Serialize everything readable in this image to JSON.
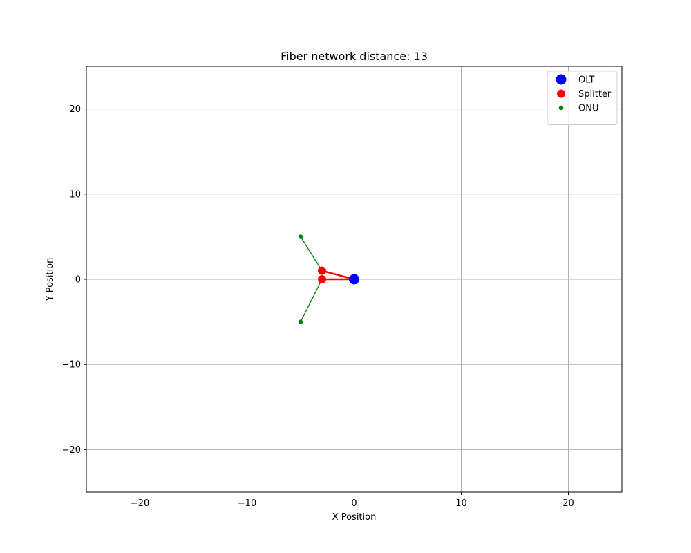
{
  "chart_data": {
    "type": "scatter",
    "title": "Fiber network distance: 13",
    "xlabel": "X Position",
    "ylabel": "Y Position",
    "xlim": [
      -25,
      25
    ],
    "ylim": [
      -25,
      25
    ],
    "xticks": [
      -20,
      -10,
      0,
      10,
      20
    ],
    "yticks": [
      -20,
      -10,
      0,
      10,
      20
    ],
    "xtick_labels": [
      "−20",
      "−10",
      "0",
      "10",
      "20"
    ],
    "ytick_labels": [
      "−20",
      "−10",
      "0",
      "10",
      "20"
    ],
    "grid": true,
    "legend_position": "top-right",
    "series": [
      {
        "name": "OLT",
        "color": "#0000ff",
        "marker": "large-circle",
        "points": [
          [
            0,
            0
          ]
        ]
      },
      {
        "name": "Splitter",
        "color": "#ff0000",
        "marker": "medium-circle",
        "points": [
          [
            -3,
            1
          ],
          [
            -3,
            0
          ]
        ]
      },
      {
        "name": "ONU",
        "color": "#008000",
        "marker": "small-circle",
        "points": [
          [
            -5,
            5
          ],
          [
            -5,
            -5
          ]
        ]
      }
    ],
    "links": [
      {
        "from": [
          0,
          0
        ],
        "to": [
          -3,
          0
        ],
        "color": "#ff0000",
        "kind": "feeder"
      },
      {
        "from": [
          0,
          0
        ],
        "to": [
          -3,
          1
        ],
        "color": "#ff0000",
        "kind": "feeder"
      },
      {
        "from": [
          -3,
          1
        ],
        "to": [
          -5,
          5
        ],
        "color": "#008000",
        "kind": "drop"
      },
      {
        "from": [
          -3,
          0
        ],
        "to": [
          -5,
          -5
        ],
        "color": "#008000",
        "kind": "drop"
      }
    ]
  }
}
